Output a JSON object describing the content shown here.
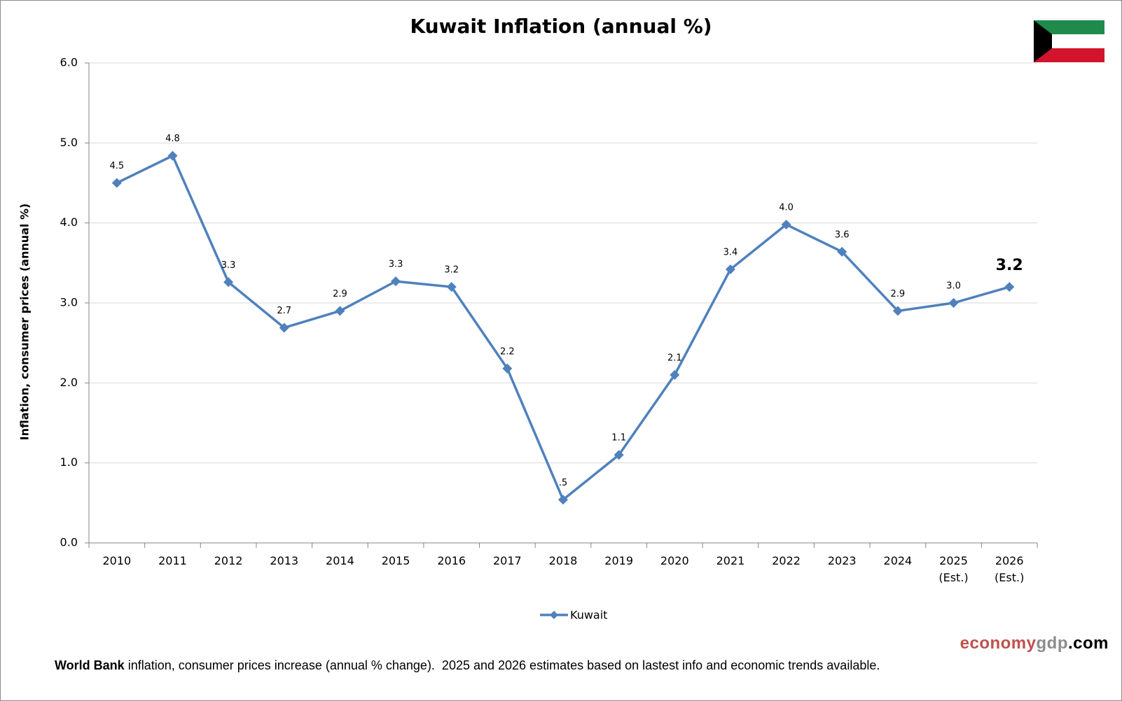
{
  "chart_data": {
    "type": "line",
    "title": "Kuwait Inflation (annual %)",
    "y_label": "Inflation, consumer prices (annual %)",
    "categories": [
      "2010",
      "2011",
      "2012",
      "2013",
      "2014",
      "2015",
      "2016",
      "2017",
      "2018",
      "2019",
      "2020",
      "2021",
      "2022",
      "2023",
      "2024",
      "2025 (Est.)",
      "2026 (Est.)"
    ],
    "series": [
      {
        "name": "Kuwait",
        "color": "#4f81bd",
        "values": [
          4.5,
          4.84,
          3.26,
          2.69,
          2.9,
          3.27,
          3.2,
          2.18,
          0.54,
          1.1,
          2.1,
          3.42,
          3.98,
          3.64,
          2.9,
          3.0,
          3.2
        ],
        "value_labels": [
          "4.5",
          "4.8",
          "3.3",
          "2.7",
          "2.9",
          "3.3",
          "3.2",
          "2.2",
          ".5",
          "1.1",
          "2.1",
          "3.4",
          "4.0",
          "3.6",
          "2.9",
          "3.0",
          "3.2"
        ]
      }
    ],
    "ylim": [
      0,
      6
    ],
    "yticks": [
      {
        "value": 0,
        "label": "0.0"
      },
      {
        "value": 1,
        "label": "1.0"
      },
      {
        "value": 2,
        "label": "2.0"
      },
      {
        "value": 3,
        "label": "3.0"
      },
      {
        "value": 4,
        "label": "4.0"
      },
      {
        "value": 5,
        "label": "5.0"
      },
      {
        "value": 6,
        "label": "6.0"
      }
    ],
    "grid": true,
    "legend": "bottom",
    "footnote_source": "World Bank",
    "footnote_text": "inflation, consumer prices increase (annual % change).  2025 and 2026 estimates based on lastest info and economic trends available.",
    "brand_1": "economy",
    "brand_2": "gdp",
    "brand_3": ".com"
  }
}
